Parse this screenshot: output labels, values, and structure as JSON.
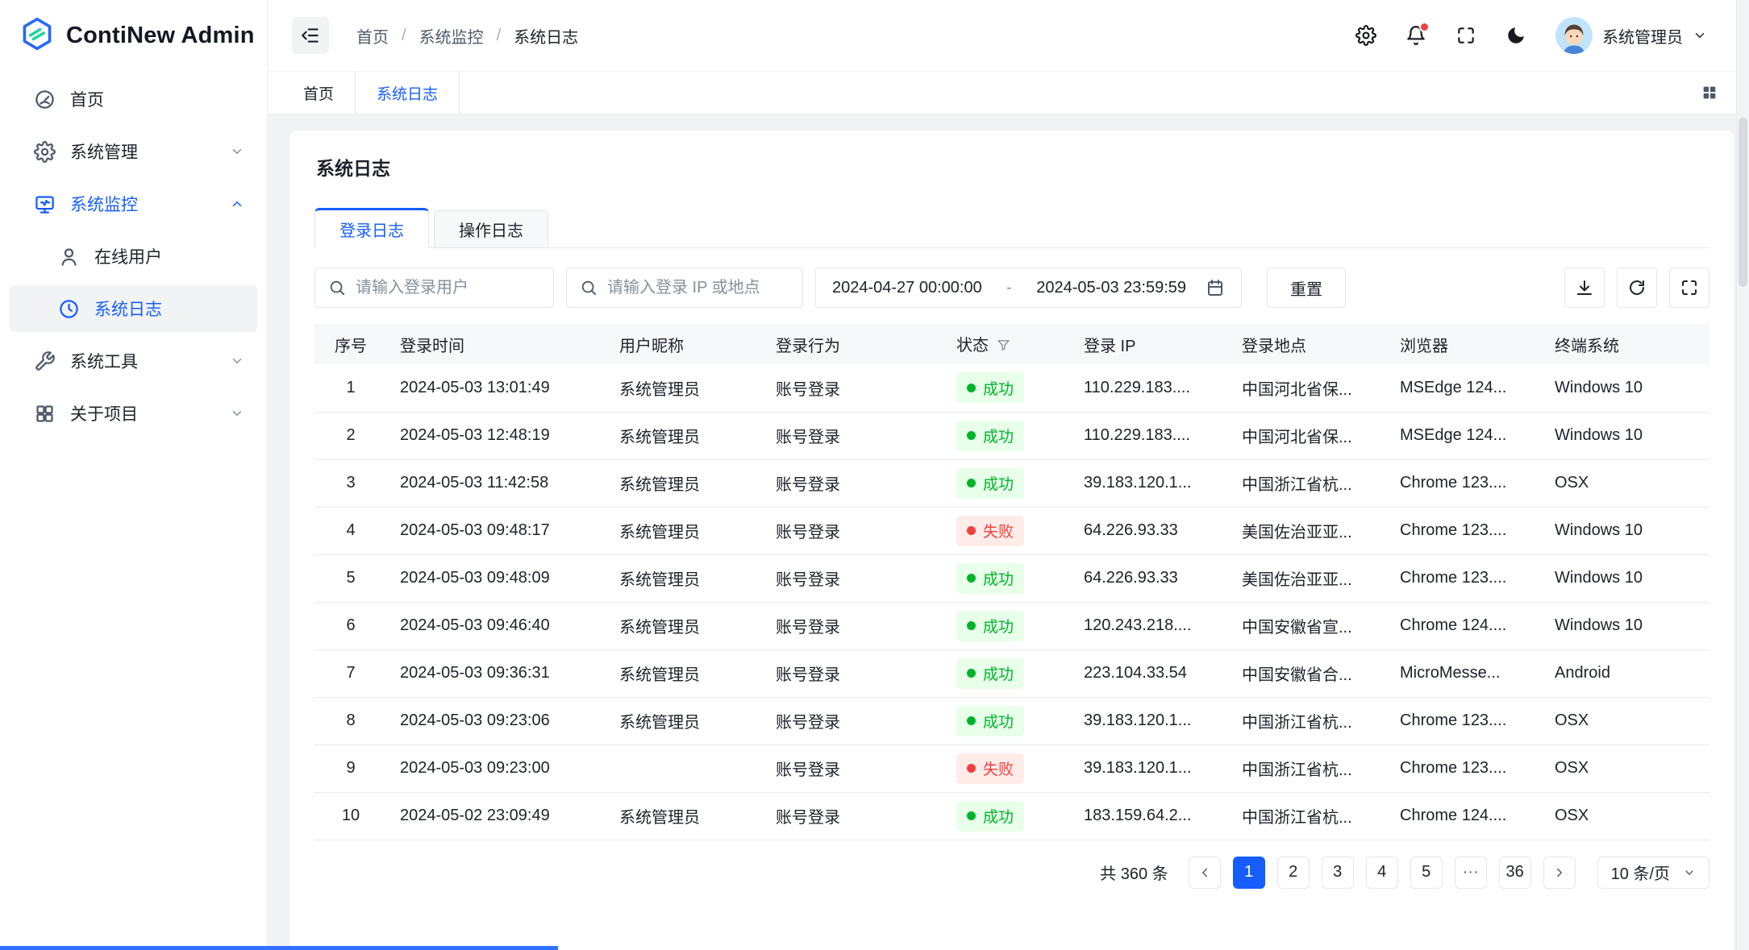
{
  "app": {
    "name": "ContiNew Admin"
  },
  "colors": {
    "primary": "#165dff",
    "success": "#00b42a",
    "success_bg": "#e8ffea",
    "danger": "#f53f3f",
    "danger_bg": "#ffece8",
    "sidebar_selected_bg": "#f2f3f5"
  },
  "icons": {
    "logo": "hexagon",
    "collapse": "menu-fold",
    "settings": "gear",
    "notifications": "bell-with-red-dot",
    "fullscreen": "corner-brackets",
    "theme": "moon",
    "search": "magnifier",
    "calendar": "calendar",
    "download": "arrow-down-to-line",
    "refresh": "circular-arrow",
    "expand": "corner-brackets",
    "filter": "funnel",
    "prev": "chevron-left",
    "next": "chevron-right",
    "dropdown": "chevron-down",
    "tab_layout": "grid-2x2"
  },
  "sidebar": {
    "items": [
      {
        "label": "首页"
      },
      {
        "label": "系统管理"
      },
      {
        "label": "系统监控"
      },
      {
        "label": "在线用户"
      },
      {
        "label": "系统日志"
      },
      {
        "label": "系统工具"
      },
      {
        "label": "关于项目"
      }
    ]
  },
  "header": {
    "breadcrumb": [
      "首页",
      "系统监控",
      "系统日志"
    ],
    "user_name": "系统管理员"
  },
  "tabbar": {
    "tabs": [
      {
        "label": "首页"
      },
      {
        "label": "系统日志"
      }
    ]
  },
  "page": {
    "title": "系统日志",
    "tabs": [
      {
        "label": "登录日志"
      },
      {
        "label": "操作日志"
      }
    ],
    "filters": {
      "user_placeholder": "请输入登录用户",
      "ip_placeholder": "请输入登录 IP 或地点",
      "date_start": "2024-04-27 00:00:00",
      "date_separator": "-",
      "date_end": "2024-05-03 23:59:59",
      "reset_label": "重置"
    },
    "table": {
      "columns": [
        "序号",
        "登录时间",
        "用户昵称",
        "登录行为",
        "状态",
        "登录 IP",
        "登录地点",
        "浏览器",
        "终端系统"
      ],
      "rows": [
        {
          "no": "1",
          "time": "2024-05-03 13:01:49",
          "user": "系统管理员",
          "action": "账号登录",
          "status": "成功",
          "status_type": "success",
          "ip": "110.229.183....",
          "loc": "中国河北省保...",
          "browser": "MSEdge 124...",
          "os": "Windows 10"
        },
        {
          "no": "2",
          "time": "2024-05-03 12:48:19",
          "user": "系统管理员",
          "action": "账号登录",
          "status": "成功",
          "status_type": "success",
          "ip": "110.229.183....",
          "loc": "中国河北省保...",
          "browser": "MSEdge 124...",
          "os": "Windows 10"
        },
        {
          "no": "3",
          "time": "2024-05-03 11:42:58",
          "user": "系统管理员",
          "action": "账号登录",
          "status": "成功",
          "status_type": "success",
          "ip": "39.183.120.1...",
          "loc": "中国浙江省杭...",
          "browser": "Chrome 123....",
          "os": "OSX"
        },
        {
          "no": "4",
          "time": "2024-05-03 09:48:17",
          "user": "系统管理员",
          "action": "账号登录",
          "status": "失败",
          "status_type": "fail",
          "ip": "64.226.93.33",
          "loc": "美国佐治亚亚...",
          "browser": "Chrome 123....",
          "os": "Windows 10"
        },
        {
          "no": "5",
          "time": "2024-05-03 09:48:09",
          "user": "系统管理员",
          "action": "账号登录",
          "status": "成功",
          "status_type": "success",
          "ip": "64.226.93.33",
          "loc": "美国佐治亚亚...",
          "browser": "Chrome 123....",
          "os": "Windows 10"
        },
        {
          "no": "6",
          "time": "2024-05-03 09:46:40",
          "user": "系统管理员",
          "action": "账号登录",
          "status": "成功",
          "status_type": "success",
          "ip": "120.243.218....",
          "loc": "中国安徽省宣...",
          "browser": "Chrome 124....",
          "os": "Windows 10"
        },
        {
          "no": "7",
          "time": "2024-05-03 09:36:31",
          "user": "系统管理员",
          "action": "账号登录",
          "status": "成功",
          "status_type": "success",
          "ip": "223.104.33.54",
          "loc": "中国安徽省合...",
          "browser": "MicroMesse...",
          "os": "Android"
        },
        {
          "no": "8",
          "time": "2024-05-03 09:23:06",
          "user": "系统管理员",
          "action": "账号登录",
          "status": "成功",
          "status_type": "success",
          "ip": "39.183.120.1...",
          "loc": "中国浙江省杭...",
          "browser": "Chrome 123....",
          "os": "OSX"
        },
        {
          "no": "9",
          "time": "2024-05-03 09:23:00",
          "user": "",
          "action": "账号登录",
          "status": "失败",
          "status_type": "fail",
          "ip": "39.183.120.1...",
          "loc": "中国浙江省杭...",
          "browser": "Chrome 123....",
          "os": "OSX"
        },
        {
          "no": "10",
          "time": "2024-05-02 23:09:49",
          "user": "系统管理员",
          "action": "账号登录",
          "status": "成功",
          "status_type": "success",
          "ip": "183.159.64.2...",
          "loc": "中国浙江省杭...",
          "browser": "Chrome 124....",
          "os": "OSX"
        }
      ]
    },
    "pagination": {
      "total_label": "共 360 条",
      "pages": [
        "1",
        "2",
        "3",
        "4",
        "5",
        "···",
        "36"
      ],
      "active_page": "1",
      "page_size_label": "10 条/页"
    }
  }
}
